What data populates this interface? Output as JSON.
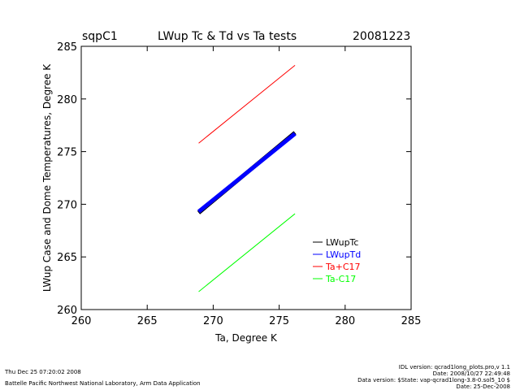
{
  "header": {
    "site": "sqpC1",
    "title": "LWup Tc & Td vs Ta tests",
    "date": "20081223"
  },
  "footer": {
    "left_line1": "Thu Dec 25 07:20:02 2008",
    "left_line2": "Battelle Pacific Northwest National Laboratory, Arm Data Application",
    "right_line1": "IDL version: qcrad1long_plots.pro,v 1.1",
    "right_line2": "Date: 2008/10/27 22:49:48",
    "right_line3": "Data version: $State: vap-qcrad1long-3.8-0.sol5_10 $",
    "right_line4": "Date: 25-Dec-2008"
  },
  "colors": {
    "LWupTc": "#000000",
    "LWupTd": "#0000ff",
    "Ta+C17": "#ff0000",
    "Ta-C17": "#00ff00"
  },
  "chart_data": {
    "type": "line",
    "title": "LWup Tc & Td vs Ta tests",
    "xlabel": "Ta, Degree K",
    "ylabel": "LWup Case and Dome Temperatures, Degree K",
    "xlim": [
      260,
      285
    ],
    "ylim": [
      260,
      285
    ],
    "xticks": [
      260,
      265,
      270,
      275,
      280,
      285
    ],
    "yticks": [
      260,
      265,
      270,
      275,
      280,
      285
    ],
    "grid": false,
    "legend_position": "lower-right",
    "series": [
      {
        "name": "LWupTc",
        "color": "#000000",
        "style": "thick",
        "x": [
          268.9,
          276.2
        ],
        "y": [
          269.2,
          276.8
        ]
      },
      {
        "name": "LWupTd",
        "color": "#0000ff",
        "style": "thick",
        "x": [
          268.9,
          276.2
        ],
        "y": [
          269.3,
          276.7
        ]
      },
      {
        "name": "Ta+C17",
        "color": "#ff0000",
        "style": "thin",
        "x": [
          268.9,
          276.2
        ],
        "y": [
          275.8,
          283.2
        ]
      },
      {
        "name": "Ta-C17",
        "color": "#00ff00",
        "style": "thin",
        "x": [
          268.9,
          276.2
        ],
        "y": [
          261.7,
          269.1
        ]
      }
    ]
  }
}
